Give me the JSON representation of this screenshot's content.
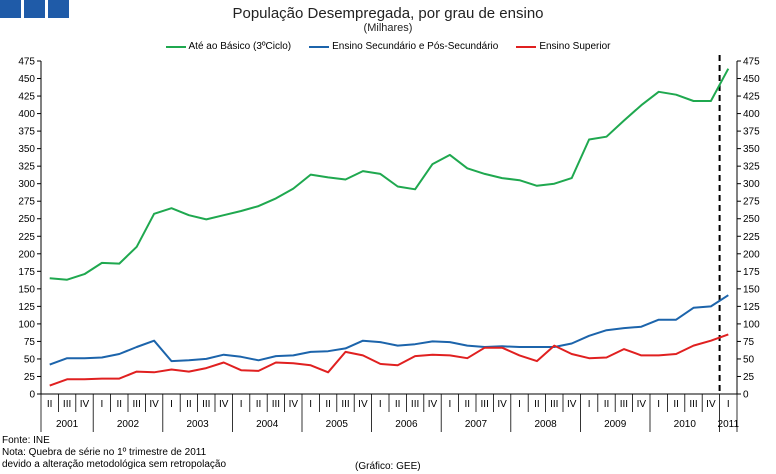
{
  "header": {
    "title": "População Desempregada, por grau de ensino",
    "subtitle": "(Milhares)"
  },
  "footer": {
    "source": "Fonte: INE",
    "note_line1": "Nota: Quebra de série no 1º trimestre de 2011",
    "note_line2": "devido a alteração metodológica sem retropolação",
    "credit": "(Gráfico: GEE)"
  },
  "colors": {
    "basico": "#1fa84f",
    "secundario": "#1c64ab",
    "superior": "#e02020"
  },
  "chart_data": {
    "type": "line",
    "title": "População Desempregada, por grau de ensino",
    "ylabel": "Milhares",
    "ylim": [
      0,
      475
    ],
    "yticks": [
      0,
      25,
      50,
      75,
      100,
      125,
      150,
      175,
      200,
      225,
      250,
      275,
      300,
      325,
      350,
      375,
      400,
      425,
      450,
      475
    ],
    "y_axis_right": true,
    "legend_position": "top-center",
    "quarters": [
      "II",
      "III",
      "IV",
      "I",
      "II",
      "III",
      "IV",
      "I",
      "II",
      "III",
      "IV",
      "I",
      "II",
      "III",
      "IV",
      "I",
      "II",
      "III",
      "IV",
      "I",
      "II",
      "III",
      "IV",
      "I",
      "II",
      "III",
      "IV",
      "I",
      "II",
      "III",
      "IV",
      "I",
      "II",
      "III",
      "IV",
      "I",
      "II",
      "III",
      "IV",
      "I"
    ],
    "years": [
      {
        "label": "2001",
        "start": 0,
        "end": 2
      },
      {
        "label": "2002",
        "start": 3,
        "end": 6
      },
      {
        "label": "2003",
        "start": 7,
        "end": 10
      },
      {
        "label": "2004",
        "start": 11,
        "end": 14
      },
      {
        "label": "2005",
        "start": 15,
        "end": 18
      },
      {
        "label": "2006",
        "start": 19,
        "end": 22
      },
      {
        "label": "2007",
        "start": 23,
        "end": 26
      },
      {
        "label": "2008",
        "start": 27,
        "end": 30
      },
      {
        "label": "2009",
        "start": 31,
        "end": 34
      },
      {
        "label": "2010",
        "start": 35,
        "end": 38
      },
      {
        "label": "2011",
        "start": 39,
        "end": 39
      }
    ],
    "series_break_after_index": 38,
    "series": [
      {
        "name": "Até ao Básico (3ºCiclo)",
        "color_key": "basico",
        "values": [
          165,
          163,
          171,
          187,
          186,
          210,
          257,
          265,
          255,
          249,
          255,
          261,
          268,
          279,
          293,
          313,
          309,
          306,
          318,
          314,
          296,
          292,
          328,
          341,
          322,
          314,
          308,
          305,
          297,
          300,
          308,
          363,
          367,
          390,
          412,
          431,
          427,
          418,
          418,
          464
        ]
      },
      {
        "name": "Ensino Secundário e Pós-Secundário",
        "color_key": "secundario",
        "values": [
          42,
          51,
          51,
          52,
          57,
          67,
          76,
          47,
          48,
          50,
          56,
          53,
          48,
          54,
          55,
          60,
          61,
          65,
          76,
          74,
          69,
          71,
          75,
          74,
          69,
          67,
          68,
          67,
          67,
          67,
          72,
          83,
          91,
          94,
          96,
          106,
          106,
          123,
          125,
          141
        ]
      },
      {
        "name": "Ensino Superior",
        "color_key": "superior",
        "values": [
          12,
          21,
          21,
          22,
          22,
          32,
          31,
          35,
          32,
          37,
          45,
          34,
          33,
          45,
          44,
          41,
          31,
          60,
          55,
          43,
          41,
          54,
          56,
          55,
          51,
          66,
          66,
          55,
          47,
          69,
          57,
          51,
          52,
          64,
          55,
          55,
          57,
          69,
          76,
          85
        ]
      }
    ]
  }
}
